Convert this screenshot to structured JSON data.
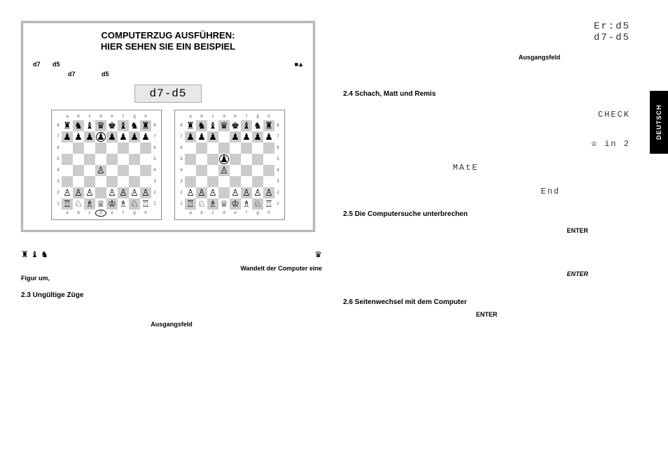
{
  "sideTab": "DEUTSCH",
  "example": {
    "titleLine1": "COMPUTERZUG AUSFÜHREN:",
    "titleLine2": "HIER SEHEN SIE EIN BEISPIEL",
    "lcd": "d7-d5",
    "row1_a": "d7",
    "row1_b": "d5",
    "row1_icons": "■▲",
    "row2_a": "d7",
    "row2_b": "d5"
  },
  "pawnPromo": {
    "glyphsLeft": "♜ ♝  ♞",
    "glyphRight": "♛",
    "line1": "Wandelt der Computer eine",
    "line2": "Figur um,"
  },
  "s23": {
    "title": "2.3 Ungültige Züge",
    "kw": "Ausgangsfeld"
  },
  "rightTop": {
    "lcd1": "Er:d5",
    "lcd2": "d7-d5",
    "kw": "Ausgangsfeld"
  },
  "s24": {
    "title": "2.4 Schach, Matt und Remis",
    "lcd_check": "CHECK",
    "lcd_min2": "♔ in 2",
    "lcd_mate": "MAtE",
    "lcd_end": "End"
  },
  "s25": {
    "title": "2.5 Die Computersuche unterbrechen",
    "kw1": "ENTER",
    "kw2": "ENTER"
  },
  "s26": {
    "title": "2.6 Seitenwechsel mit dem Computer",
    "kw": "ENTER"
  },
  "chess": {
    "files": [
      "a",
      "b",
      "c",
      "d",
      "e",
      "f",
      "g",
      "h"
    ],
    "ranks": [
      "8",
      "7",
      "6",
      "5",
      "4",
      "3",
      "2",
      "1"
    ],
    "whitePieces": {
      "K": "♔",
      "Q": "♕",
      "R": "♖",
      "B": "♗",
      "N": "♘",
      "P": "♙"
    },
    "blackPieces": {
      "K": "♚",
      "Q": "♛",
      "R": "♜",
      "B": "♝",
      "N": "♞",
      "P": "♟"
    },
    "board1": {
      "highlights": [
        "d7",
        "d1-bottom"
      ],
      "position": {
        "a8": "bR",
        "b8": "bN",
        "c8": "bB",
        "d8": "bQ",
        "e8": "bK",
        "f8": "bB",
        "g8": "bN",
        "h8": "bR",
        "a7": "bP",
        "b7": "bP",
        "c7": "bP",
        "d7": "bP",
        "e7": "bP",
        "f7": "bP",
        "g7": "bP",
        "h7": "bP",
        "d4": "wP",
        "a2": "wP",
        "b2": "wP",
        "c2": "wP",
        "e2": "wP",
        "f2": "wP",
        "g2": "wP",
        "h2": "wP",
        "a1": "wR",
        "b1": "wN",
        "c1": "wB",
        "d1": "wQ",
        "e1": "wK",
        "f1": "wB",
        "g1": "wN",
        "h1": "wR"
      }
    },
    "board2": {
      "highlights": [
        "d5"
      ],
      "position": {
        "a8": "bR",
        "b8": "bN",
        "c8": "bB",
        "d8": "bQ",
        "e8": "bK",
        "f8": "bB",
        "g8": "bN",
        "h8": "bR",
        "a7": "bP",
        "b7": "bP",
        "c7": "bP",
        "e7": "bP",
        "f7": "bP",
        "g7": "bP",
        "h7": "bP",
        "d5": "bP",
        "d4": "wP",
        "a2": "wP",
        "b2": "wP",
        "c2": "wP",
        "e2": "wP",
        "f2": "wP",
        "g2": "wP",
        "h2": "wP",
        "a1": "wR",
        "b1": "wN",
        "c1": "wB",
        "d1": "wQ",
        "e1": "wK",
        "f1": "wB",
        "g1": "wN",
        "h1": "wR"
      }
    }
  },
  "colors": {
    "boardDark": "#cccccc",
    "boardLight": "#ffffff",
    "frame": "#888888"
  }
}
